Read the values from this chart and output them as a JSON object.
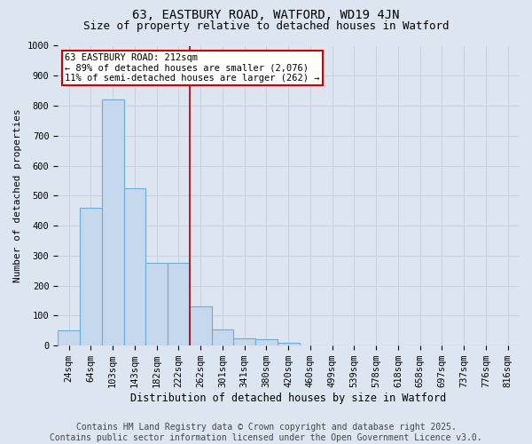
{
  "title1": "63, EASTBURY ROAD, WATFORD, WD19 4JN",
  "title2": "Size of property relative to detached houses in Watford",
  "xlabel": "Distribution of detached houses by size in Watford",
  "ylabel": "Number of detached properties",
  "categories": [
    "24sqm",
    "64sqm",
    "103sqm",
    "143sqm",
    "182sqm",
    "222sqm",
    "262sqm",
    "301sqm",
    "341sqm",
    "380sqm",
    "420sqm",
    "460sqm",
    "499sqm",
    "539sqm",
    "578sqm",
    "618sqm",
    "658sqm",
    "697sqm",
    "737sqm",
    "776sqm",
    "816sqm"
  ],
  "values": [
    50,
    460,
    820,
    525,
    275,
    275,
    130,
    55,
    25,
    20,
    10,
    0,
    0,
    0,
    0,
    0,
    0,
    0,
    0,
    0,
    0
  ],
  "bar_color": "#c5d8ee",
  "bar_edge_color": "#6aaed6",
  "property_line_x": 5.5,
  "property_line_color": "#aa0000",
  "annotation_line1": "63 EASTBURY ROAD: 212sqm",
  "annotation_line2": "← 89% of detached houses are smaller (2,076)",
  "annotation_line3": "11% of semi-detached houses are larger (262) →",
  "annotation_box_color": "#cc0000",
  "annotation_box_bg": "#ffffff",
  "ylim": [
    0,
    1000
  ],
  "yticks": [
    0,
    100,
    200,
    300,
    400,
    500,
    600,
    700,
    800,
    900,
    1000
  ],
  "grid_color": "#c8cfe0",
  "bg_color": "#dde5f0",
  "footer_line1": "Contains HM Land Registry data © Crown copyright and database right 2025.",
  "footer_line2": "Contains public sector information licensed under the Open Government Licence v3.0.",
  "title_fontsize": 10,
  "subtitle_fontsize": 9,
  "axis_fontsize": 7.5,
  "ylabel_fontsize": 8,
  "xlabel_fontsize": 8.5,
  "footer_fontsize": 7,
  "annot_fontsize": 7.5
}
